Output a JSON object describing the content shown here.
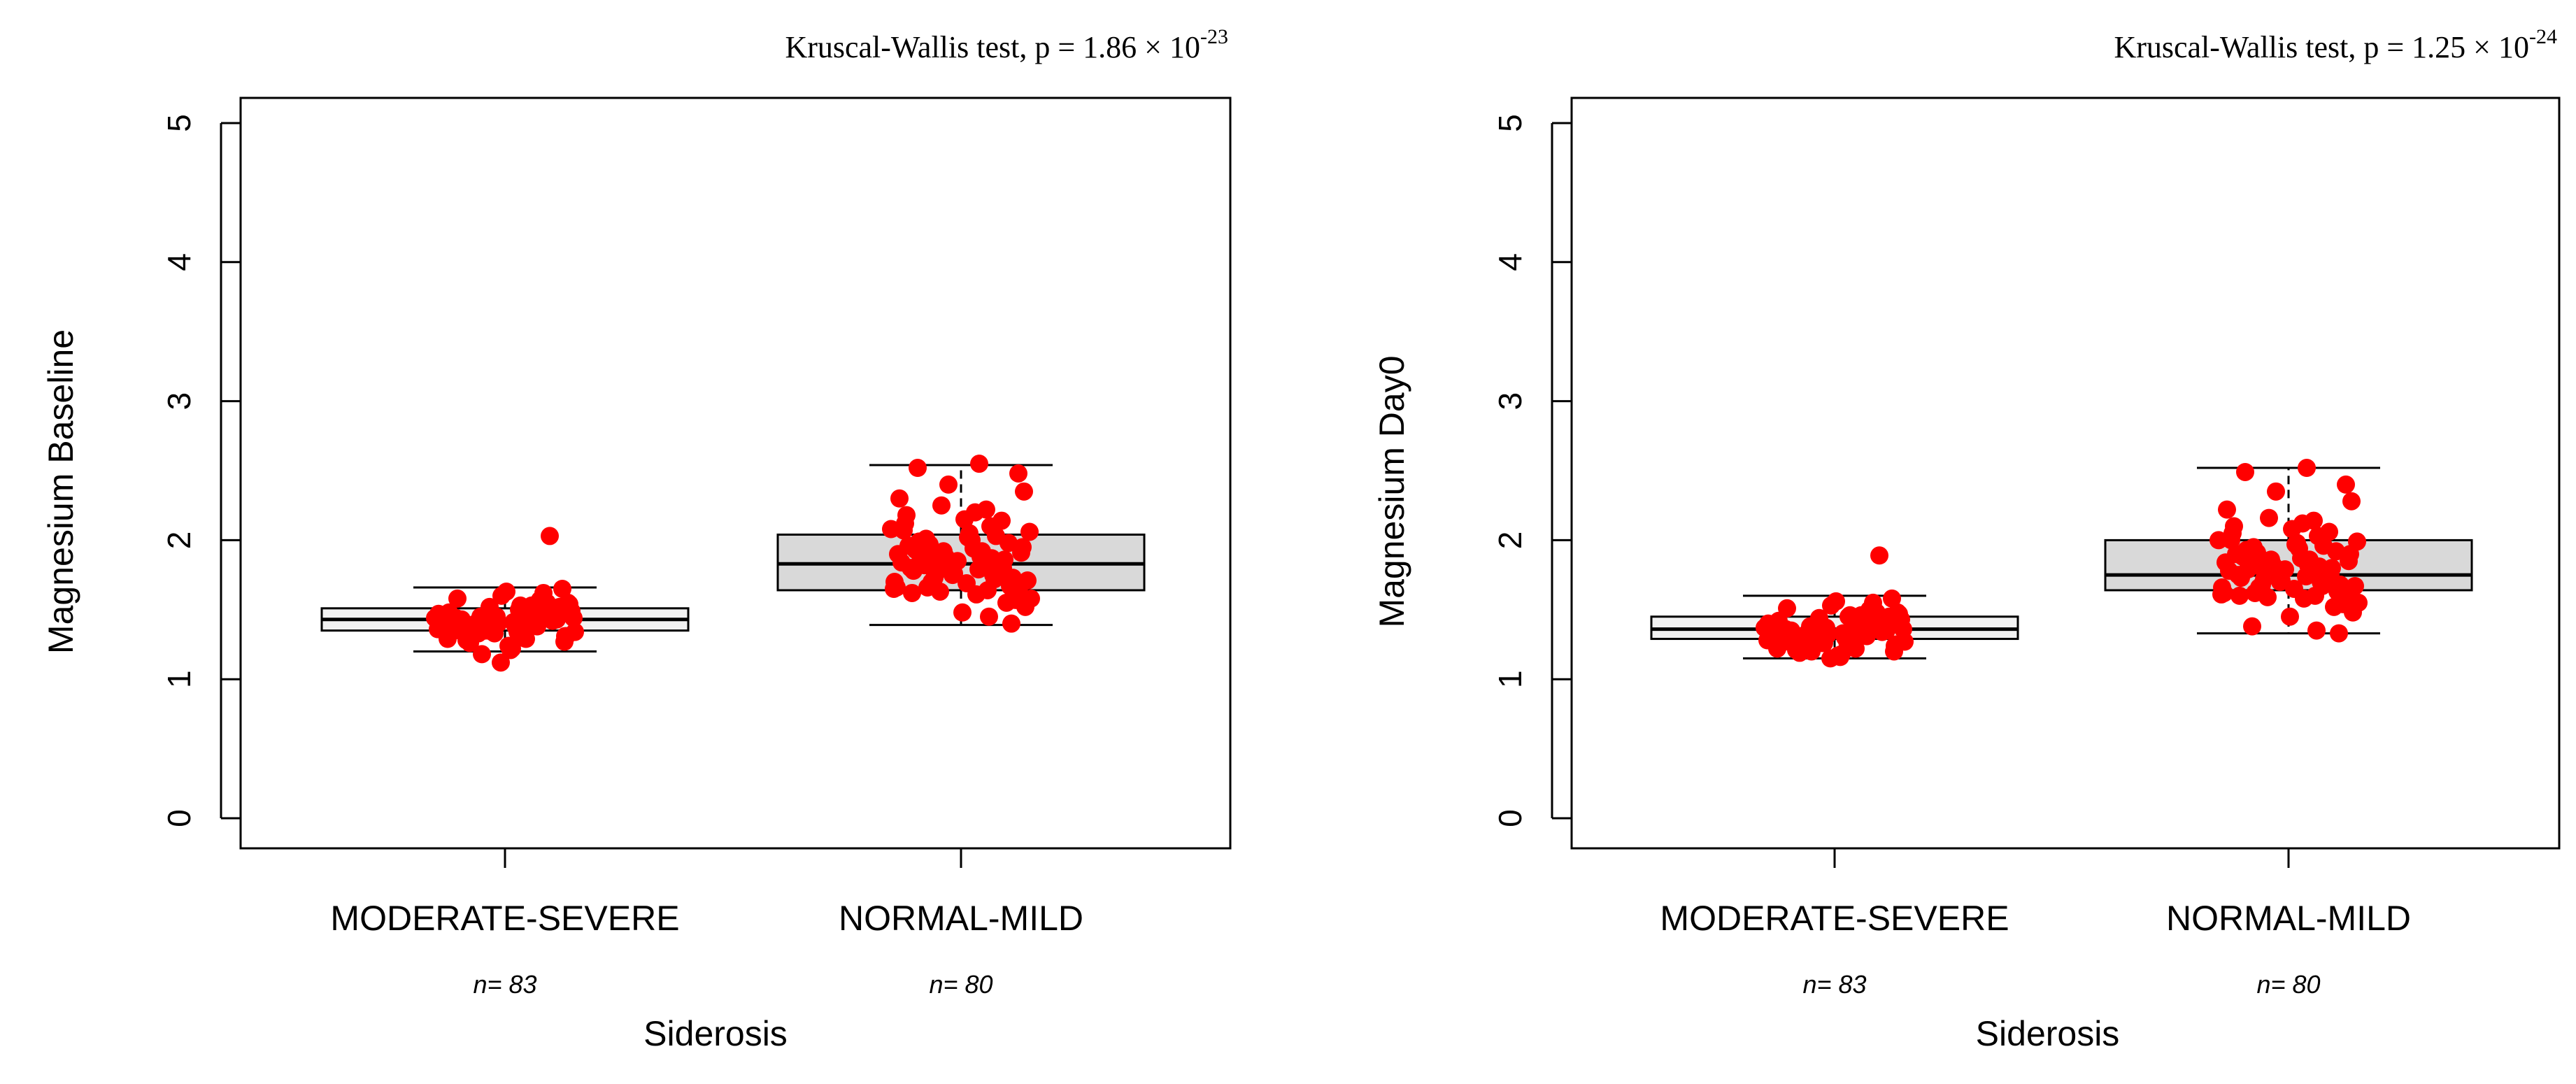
{
  "colors": {
    "point": "#ff0000",
    "box_fill_low": "#f2f2f2",
    "box_fill_high": "#d9d9d9",
    "stroke": "#000000",
    "background": "#ffffff"
  },
  "chart_data": [
    {
      "type": "boxplot",
      "test_label": "Kruscal-Wallis  test,  p = 1.86 × 10",
      "test_exp": "-23",
      "xlabel": "Siderosis",
      "ylabel": "Magnesium Baseline",
      "ylim": [
        0,
        5
      ],
      "yticks": [
        "0",
        "1",
        "2",
        "3",
        "4",
        "5"
      ],
      "categories": [
        "MODERATE-SEVERE",
        "NORMAL-MILD"
      ],
      "n_labels": [
        "n= 83",
        "n= 80"
      ],
      "grid": false,
      "boxes": [
        {
          "whisker_low": 1.2,
          "q1": 1.35,
          "median": 1.43,
          "q3": 1.51,
          "whisker_high": 1.66
        },
        {
          "whisker_low": 1.39,
          "q1": 1.64,
          "median": 1.83,
          "q3": 2.04,
          "whisker_high": 2.54
        }
      ],
      "points": [
        [
          1.44,
          1.38,
          1.52,
          1.31,
          1.47,
          1.41,
          1.55,
          1.36,
          1.29,
          1.48,
          1.43,
          1.6,
          1.34,
          1.39,
          1.5,
          1.45,
          1.27,
          1.42,
          1.57,
          1.33,
          1.46,
          1.4,
          1.24,
          1.49,
          1.37,
          1.53,
          1.44,
          1.3,
          1.41,
          1.47,
          1.35,
          1.62,
          1.43,
          1.38,
          1.51,
          1.28,
          1.45,
          1.4,
          1.54,
          1.32,
          1.46,
          1.42,
          1.21,
          1.49,
          1.37,
          1.44,
          1.58,
          1.34,
          1.41,
          1.47,
          1.39,
          1.52,
          1.26,
          1.43,
          1.36,
          1.5,
          1.45,
          1.31,
          1.4,
          1.48,
          1.35,
          1.63,
          1.42,
          1.38,
          1.53,
          1.29,
          1.46,
          1.41,
          1.55,
          1.33,
          1.44,
          1.39,
          1.22,
          1.47,
          1.36,
          1.5,
          1.43,
          1.65,
          1.34,
          1.4,
          1.12,
          2.03,
          1.18
        ],
        [
          1.62,
          1.75,
          1.88,
          1.95,
          1.7,
          2.05,
          1.8,
          1.66,
          1.92,
          2.12,
          1.73,
          1.85,
          1.58,
          1.99,
          2.2,
          1.77,
          1.68,
          1.9,
          2.03,
          1.82,
          1.55,
          1.96,
          2.15,
          1.71,
          1.87,
          1.64,
          2.08,
          1.79,
          1.93,
          1.6,
          2.25,
          1.74,
          1.84,
          2.0,
          1.67,
          1.89,
          2.1,
          1.76,
          1.52,
          1.97,
          1.81,
          2.18,
          1.69,
          1.86,
          1.63,
          2.06,
          1.78,
          1.94,
          2.3,
          1.72,
          1.83,
          1.57,
          2.01,
          1.88,
          1.65,
          2.14,
          1.75,
          1.91,
          1.7,
          2.22,
          1.8,
          1.48,
          1.98,
          1.85,
          1.61,
          2.07,
          1.77,
          1.92,
          2.35,
          1.73,
          1.87,
          1.66,
          2.02,
          1.4,
          1.82,
          2.55,
          2.52,
          2.48,
          2.4,
          1.45
        ]
      ]
    },
    {
      "type": "boxplot",
      "test_label": "Kruscal-Wallis  test,  p = 1.25 × 10",
      "test_exp": "-24",
      "xlabel": "Siderosis",
      "ylabel": "Magnesium Day0",
      "ylim": [
        0,
        5
      ],
      "yticks": [
        "0",
        "1",
        "2",
        "3",
        "4",
        "5"
      ],
      "categories": [
        "MODERATE-SEVERE",
        "NORMAL-MILD"
      ],
      "n_labels": [
        "n= 83",
        "n= 80"
      ],
      "grid": false,
      "boxes": [
        {
          "whisker_low": 1.15,
          "q1": 1.29,
          "median": 1.36,
          "q3": 1.45,
          "whisker_high": 1.6
        },
        {
          "whisker_low": 1.33,
          "q1": 1.64,
          "median": 1.75,
          "q3": 2.0,
          "whisker_high": 2.52
        }
      ],
      "points": [
        [
          1.36,
          1.31,
          1.44,
          1.25,
          1.4,
          1.33,
          1.48,
          1.28,
          1.22,
          1.42,
          1.35,
          1.53,
          1.27,
          1.32,
          1.45,
          1.38,
          1.2,
          1.34,
          1.5,
          1.26,
          1.39,
          1.3,
          1.17,
          1.43,
          1.29,
          1.46,
          1.37,
          1.23,
          1.33,
          1.41,
          1.28,
          1.55,
          1.35,
          1.3,
          1.44,
          1.21,
          1.38,
          1.32,
          1.47,
          1.25,
          1.4,
          1.34,
          1.16,
          1.43,
          1.29,
          1.36,
          1.51,
          1.27,
          1.33,
          1.41,
          1.31,
          1.45,
          1.19,
          1.35,
          1.28,
          1.42,
          1.37,
          1.24,
          1.32,
          1.4,
          1.27,
          1.56,
          1.34,
          1.3,
          1.46,
          1.22,
          1.39,
          1.33,
          1.48,
          1.26,
          1.36,
          1.31,
          1.18,
          1.42,
          1.29,
          1.44,
          1.35,
          1.58,
          1.26,
          1.32,
          1.15,
          1.89,
          1.2
        ],
        [
          1.6,
          1.7,
          1.82,
          1.9,
          1.66,
          1.98,
          1.75,
          1.62,
          1.86,
          2.05,
          1.68,
          1.79,
          1.55,
          1.93,
          2.12,
          1.72,
          1.64,
          1.84,
          1.96,
          1.77,
          1.52,
          1.9,
          2.08,
          1.67,
          1.81,
          1.6,
          2.0,
          1.74,
          1.88,
          1.57,
          2.16,
          1.69,
          1.78,
          1.94,
          1.63,
          1.83,
          2.03,
          1.71,
          1.48,
          1.91,
          1.76,
          2.1,
          1.65,
          1.8,
          1.59,
          1.99,
          1.73,
          1.87,
          2.22,
          1.67,
          1.77,
          1.54,
          1.95,
          1.82,
          1.61,
          2.06,
          1.7,
          1.85,
          1.66,
          2.14,
          1.75,
          1.45,
          1.92,
          1.79,
          1.58,
          2.0,
          1.72,
          1.86,
          2.28,
          1.68,
          1.81,
          1.62,
          1.97,
          1.33,
          1.38,
          2.52,
          2.49,
          2.4,
          2.35,
          1.35
        ]
      ]
    }
  ]
}
